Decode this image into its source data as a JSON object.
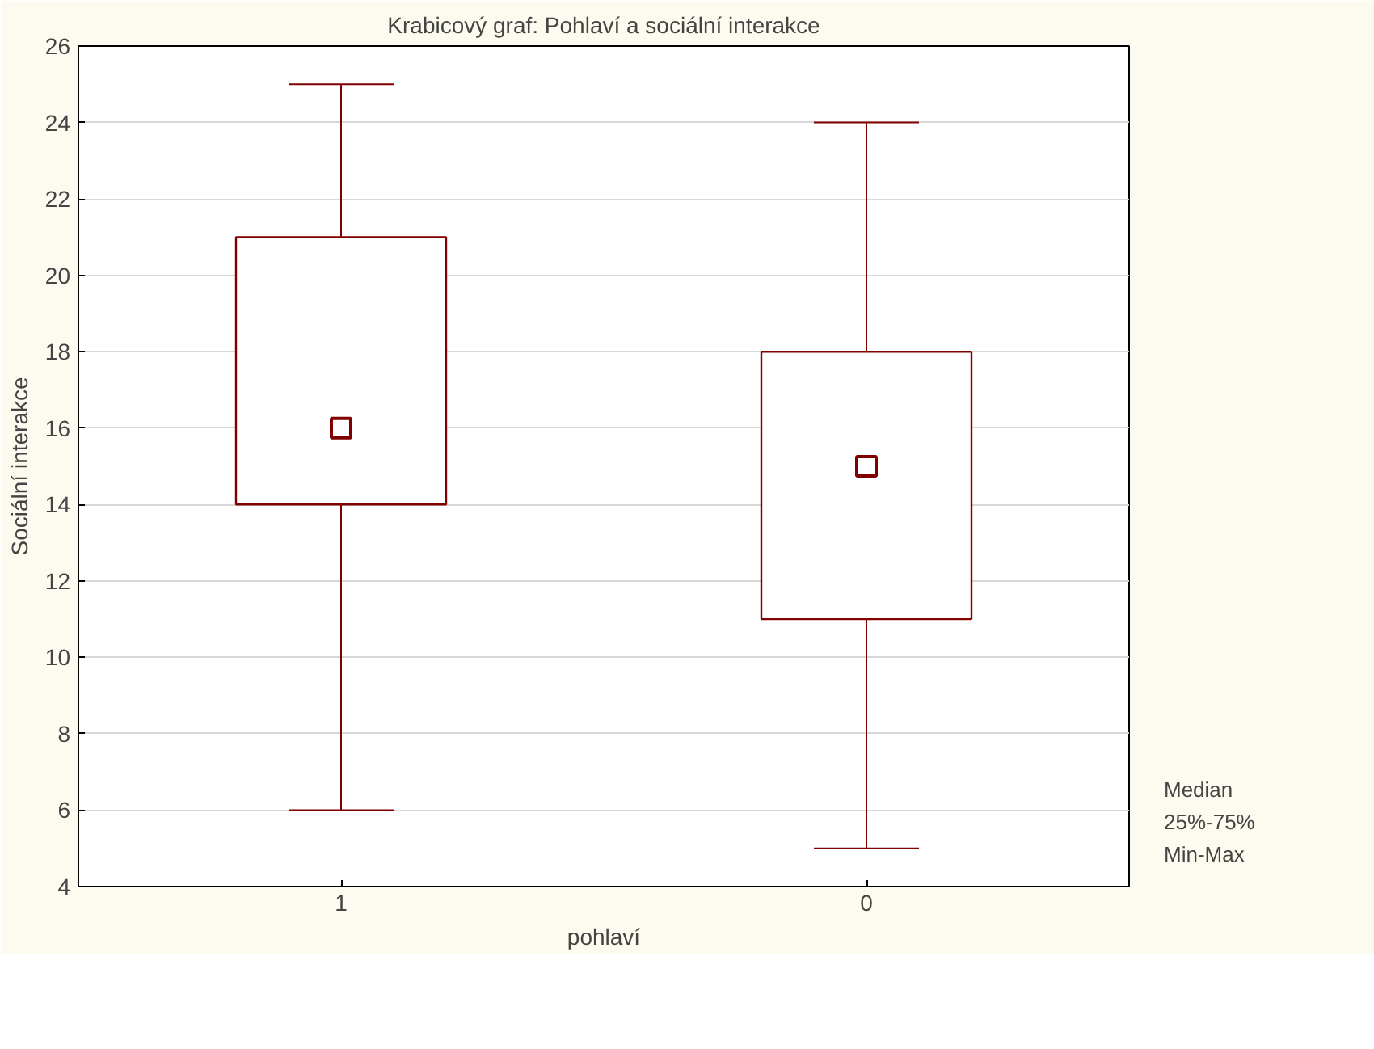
{
  "chart_data": {
    "type": "box",
    "title": "Krabicový graf: Pohlaví a sociální interakce",
    "xlabel": "pohlaví",
    "ylabel": "Sociální interakce",
    "categories": [
      "1",
      "0"
    ],
    "boxes": [
      {
        "low": 6,
        "q1": 14,
        "median": 16,
        "q3": 21,
        "high": 25
      },
      {
        "low": 5,
        "q1": 11,
        "median": 15,
        "q3": 18,
        "high": 24
      }
    ],
    "color": "#800000",
    "ylim": [
      4,
      26
    ],
    "yticks": [
      4,
      6,
      8,
      10,
      12,
      14,
      16,
      18,
      20,
      22,
      24,
      26
    ],
    "grid": "y",
    "annotations": [
      "Median",
      "25%-75%",
      "Min-Max"
    ]
  }
}
